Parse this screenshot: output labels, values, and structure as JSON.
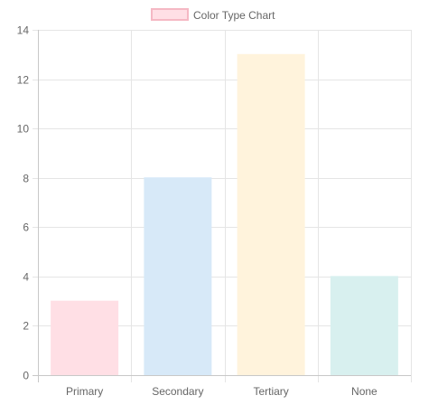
{
  "chart_data": {
    "type": "bar",
    "categories": [
      "Primary",
      "Secondary",
      "Tertiary",
      "None"
    ],
    "series": [
      {
        "name": "Color Type Chart",
        "values": [
          3,
          8,
          13,
          4
        ],
        "fill_colors": [
          "#ffdfe5",
          "#d7e9f8",
          "#fff3dc",
          "#d8f0ef"
        ],
        "border_colors": [
          "#ffdfe5",
          "#d7e9f8",
          "#fff3dc",
          "#d8f0ef"
        ]
      }
    ],
    "legend": {
      "placement": "top-center",
      "swatch_fill": "#ffdfe5",
      "swatch_border": "#f5b8c4"
    },
    "ylim": [
      0,
      14
    ],
    "yticks": [
      0,
      2,
      4,
      6,
      8,
      10,
      12,
      14
    ],
    "grid": true,
    "grid_color": "#e5e5e5",
    "axis_color": "#c8c8c8",
    "title": "",
    "xlabel": "",
    "ylabel": ""
  }
}
